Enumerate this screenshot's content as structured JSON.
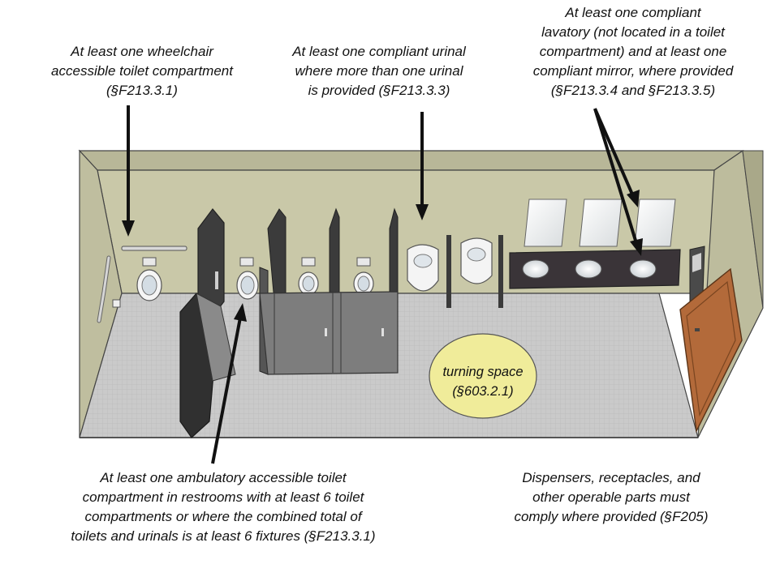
{
  "callouts": {
    "wheelchair": {
      "lines": [
        "At least one wheelchair",
        "accessible toilet compartment",
        "(§F213.3.1)"
      ]
    },
    "urinal": {
      "lines": [
        "At least one compliant urinal",
        "where more than one urinal",
        "is provided (§F213.3.3)"
      ]
    },
    "lavatory": {
      "lines": [
        "At least one compliant",
        "lavatory (not located in a toilet",
        "compartment) and at least one",
        "compliant mirror, where provided",
        "(§F213.3.4 and §F213.3.5)"
      ]
    },
    "ambulatory": {
      "lines": [
        "At least one ambulatory accessible toilet",
        "compartment in restrooms with at least 6 toilet",
        "compartments or where the combined total of",
        "toilets and urinals is at least 6 fixtures (§F213.3.1)"
      ]
    },
    "dispensers": {
      "lines": [
        "Dispensers, receptacles, and",
        "other operable parts must",
        "comply where provided (§F205)"
      ]
    }
  },
  "turning_space": {
    "line1": "turning space",
    "line2": "(§603.2.1)"
  },
  "colors": {
    "wall": "#c9c8a8",
    "floor": "#c8c8c8",
    "partition": "#7b7b7b",
    "partition_dark": "#3e3e3e",
    "turning_circle": "#f0ec9a",
    "counter": "#3a3438",
    "door": "#b36a3a"
  }
}
